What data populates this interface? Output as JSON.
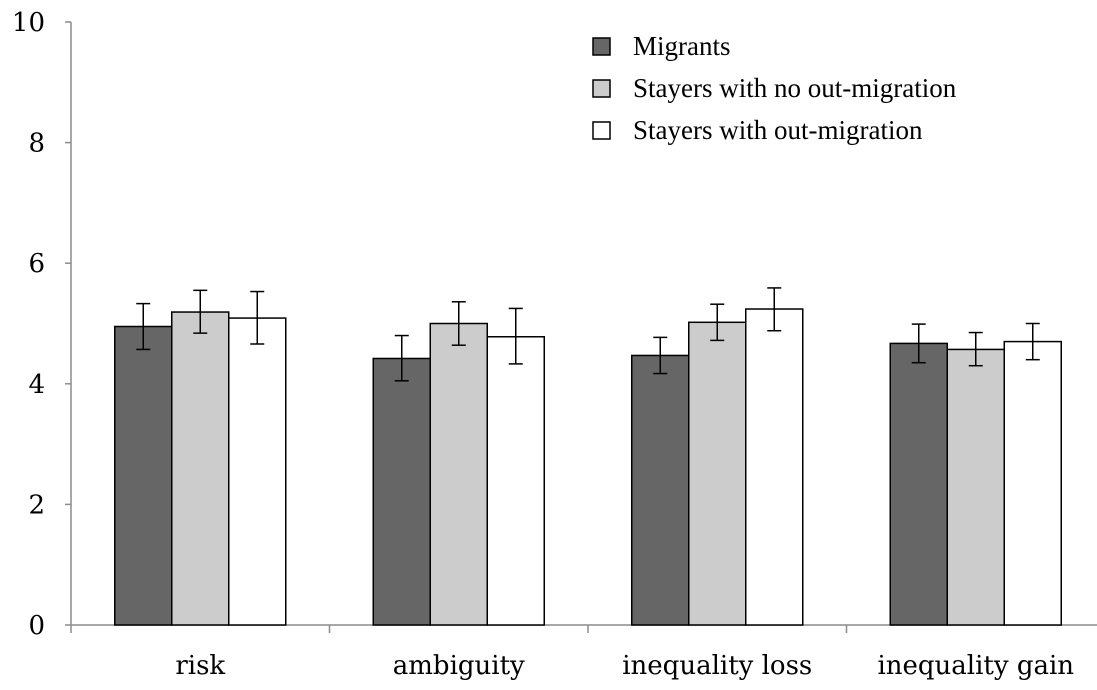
{
  "chart_data": {
    "type": "bar",
    "title": "",
    "xlabel": "",
    "ylabel": "",
    "ylim": [
      0,
      10
    ],
    "yticks": [
      "0",
      "2",
      "4",
      "6",
      "8",
      "10"
    ],
    "categories": [
      "risk",
      "ambiguity",
      "inequality loss",
      "inequality gain"
    ],
    "series": [
      {
        "name": "Migrants",
        "color": "#666666",
        "values": [
          4.95,
          4.42,
          4.47,
          4.67
        ],
        "error_low": [
          4.57,
          4.05,
          4.17,
          4.35
        ],
        "error_high": [
          5.33,
          4.8,
          4.77,
          4.99
        ]
      },
      {
        "name": "Stayers with no out-migration",
        "color": "#cccccc",
        "values": [
          5.19,
          5.0,
          5.02,
          4.57
        ],
        "error_low": [
          4.84,
          4.64,
          4.72,
          4.3
        ],
        "error_high": [
          5.55,
          5.36,
          5.32,
          4.85
        ]
      },
      {
        "name": "Stayers with out-migration",
        "color": "#ffffff",
        "values": [
          5.09,
          4.78,
          5.24,
          4.7
        ],
        "error_low": [
          4.66,
          4.33,
          4.88,
          4.4
        ],
        "error_high": [
          5.53,
          5.25,
          5.59,
          5.0
        ]
      }
    ],
    "legend_position": "top-right",
    "grid": false
  }
}
